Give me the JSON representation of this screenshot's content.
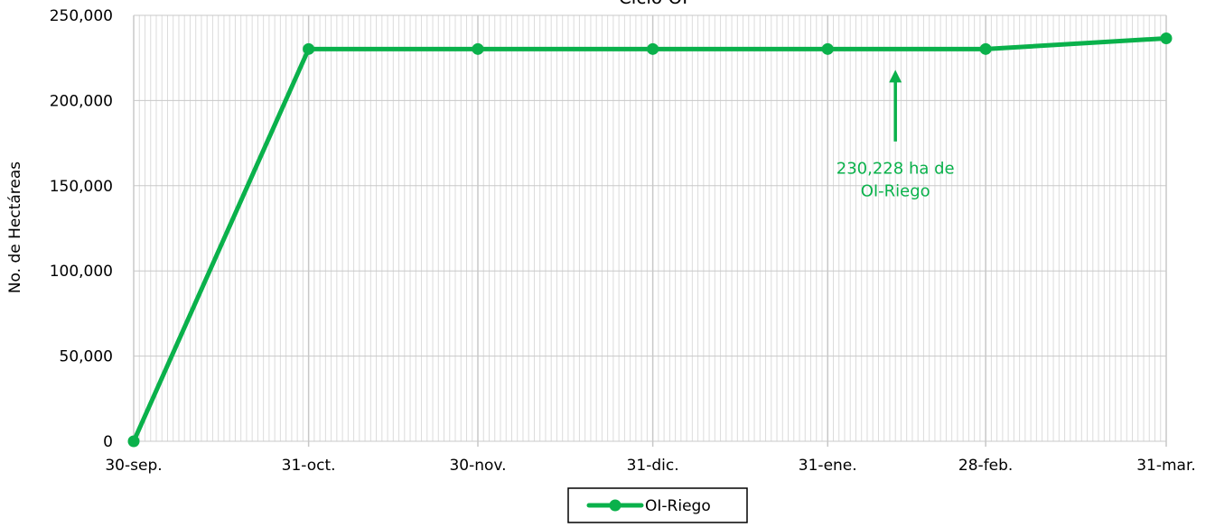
{
  "chart_data": {
    "type": "line",
    "title": "Ciclo OI",
    "ylabel": "No. de Hectáreas",
    "xlabel": "",
    "categories": [
      "30-sep.",
      "31-oct.",
      "30-nov.",
      "31-dic.",
      "31-ene.",
      "28-feb.",
      "31-mar."
    ],
    "x": [
      "2019-09-30",
      "2019-10-31",
      "2019-11-30",
      "2019-12-31",
      "2020-01-31",
      "2020-02-28",
      "2020-03-31"
    ],
    "xlim": [
      "2019-09-30",
      "2020-03-31"
    ],
    "ylim": [
      0,
      250000
    ],
    "yticks": [
      0,
      50000,
      100000,
      150000,
      200000,
      250000
    ],
    "ytick_labels": [
      "0",
      "50,000",
      "100,000",
      "150,000",
      "200,000",
      "250,000"
    ],
    "grid": "on (dense daily vertical gridlines, horizontal gridlines at y ticks)",
    "legend_position": "bottom",
    "series": [
      {
        "name": "OI-Riego",
        "color": "#0ab14b",
        "values": [
          0,
          230228,
          230228,
          230228,
          230228,
          230228,
          236500
        ]
      }
    ],
    "annotation": {
      "lines": [
        "230,228 ha de",
        "OI-Riego"
      ],
      "arrow_at": "2020-02-12",
      "arrow_from_value": 176000,
      "arrow_to_value": 218000,
      "color": "#0ab14b"
    }
  }
}
